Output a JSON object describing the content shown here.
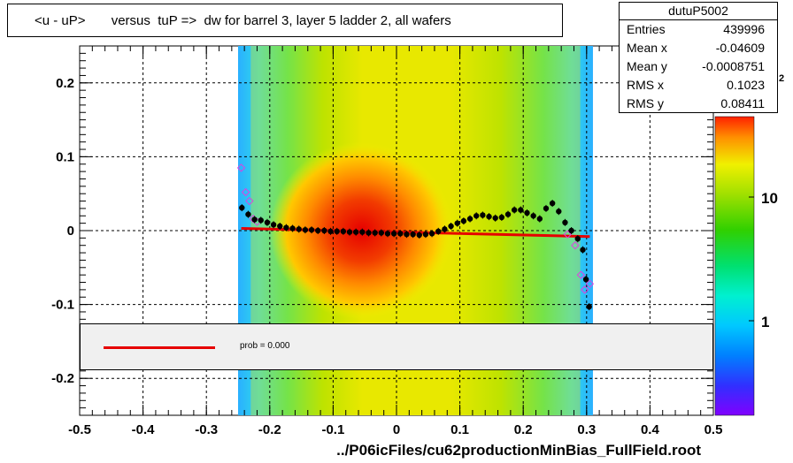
{
  "title": "<u - uP>       versus  tuP =>  dw for barrel 3, layer 5 ladder 2, all wafers",
  "stats": {
    "name": "dutuP5002",
    "rows": [
      {
        "key": "Entries",
        "value": "439996"
      },
      {
        "key": "Mean x",
        "value": "-0.04609"
      },
      {
        "key": "Mean y",
        "value": "-0.0008751"
      },
      {
        "key": "RMS x",
        "value": "0.1023"
      },
      {
        "key": "RMS y",
        "value": "0.08411"
      }
    ]
  },
  "legend": {
    "text": "prob = 0.000"
  },
  "footer": "../P06icFiles/cu62productionMinBias_FullField.root",
  "colors": {
    "fit_line": "#e60000",
    "profile_marker": "#000000",
    "open_marker": "#e040e0"
  },
  "chart_data": {
    "type": "heatmap",
    "xlim": [
      -0.5,
      0.5
    ],
    "ylim": [
      -0.25,
      0.25
    ],
    "x_ticks": [
      "-0.5",
      "-0.4",
      "-0.3",
      "-0.2",
      "-0.1",
      "0",
      "0.1",
      "0.2",
      "0.3",
      "0.4",
      "0.5"
    ],
    "y_ticks": [
      "-0.2",
      "-0.1",
      "0",
      "0.1",
      "0.2"
    ],
    "grid": true,
    "color_scale": {
      "scale": "log",
      "labels": [
        "1",
        "10"
      ],
      "top_label_partial": "2"
    },
    "profile_points": [
      {
        "x": -0.244,
        "y": 0.031
      },
      {
        "x": -0.234,
        "y": 0.022
      },
      {
        "x": -0.224,
        "y": 0.015
      },
      {
        "x": -0.214,
        "y": 0.014
      },
      {
        "x": -0.204,
        "y": 0.011
      },
      {
        "x": -0.194,
        "y": 0.008
      },
      {
        "x": -0.184,
        "y": 0.006
      },
      {
        "x": -0.174,
        "y": 0.004
      },
      {
        "x": -0.164,
        "y": 0.003
      },
      {
        "x": -0.154,
        "y": 0.002
      },
      {
        "x": -0.144,
        "y": 0.001
      },
      {
        "x": -0.134,
        "y": 0.001
      },
      {
        "x": -0.124,
        "y": 0.0
      },
      {
        "x": -0.114,
        "y": 0.0
      },
      {
        "x": -0.104,
        "y": -0.001
      },
      {
        "x": -0.094,
        "y": -0.001
      },
      {
        "x": -0.084,
        "y": -0.001
      },
      {
        "x": -0.074,
        "y": -0.002
      },
      {
        "x": -0.064,
        "y": -0.002
      },
      {
        "x": -0.054,
        "y": -0.002
      },
      {
        "x": -0.044,
        "y": -0.003
      },
      {
        "x": -0.034,
        "y": -0.003
      },
      {
        "x": -0.024,
        "y": -0.003
      },
      {
        "x": -0.014,
        "y": -0.004
      },
      {
        "x": -0.004,
        "y": -0.004
      },
      {
        "x": 0.006,
        "y": -0.004
      },
      {
        "x": 0.016,
        "y": -0.005
      },
      {
        "x": 0.026,
        "y": -0.005
      },
      {
        "x": 0.036,
        "y": -0.006
      },
      {
        "x": 0.046,
        "y": -0.005
      },
      {
        "x": 0.056,
        "y": -0.004
      },
      {
        "x": 0.066,
        "y": -0.001
      },
      {
        "x": 0.076,
        "y": 0.002
      },
      {
        "x": 0.086,
        "y": 0.006
      },
      {
        "x": 0.096,
        "y": 0.01
      },
      {
        "x": 0.106,
        "y": 0.013
      },
      {
        "x": 0.116,
        "y": 0.016
      },
      {
        "x": 0.126,
        "y": 0.02
      },
      {
        "x": 0.136,
        "y": 0.021
      },
      {
        "x": 0.146,
        "y": 0.019
      },
      {
        "x": 0.156,
        "y": 0.017
      },
      {
        "x": 0.166,
        "y": 0.018
      },
      {
        "x": 0.176,
        "y": 0.022
      },
      {
        "x": 0.186,
        "y": 0.028
      },
      {
        "x": 0.196,
        "y": 0.028
      },
      {
        "x": 0.206,
        "y": 0.024
      },
      {
        "x": 0.216,
        "y": 0.02
      },
      {
        "x": 0.226,
        "y": 0.016
      },
      {
        "x": 0.236,
        "y": 0.03
      },
      {
        "x": 0.246,
        "y": 0.037
      },
      {
        "x": 0.256,
        "y": 0.026
      },
      {
        "x": 0.266,
        "y": 0.011
      },
      {
        "x": 0.276,
        "y": 0.0
      },
      {
        "x": 0.286,
        "y": -0.011
      },
      {
        "x": 0.294,
        "y": -0.026
      },
      {
        "x": 0.299,
        "y": -0.066
      },
      {
        "x": 0.304,
        "y": -0.103
      }
    ],
    "open_points": [
      {
        "x": -0.245,
        "y": 0.085
      },
      {
        "x": -0.238,
        "y": 0.052
      },
      {
        "x": -0.232,
        "y": 0.04
      },
      {
        "x": -0.226,
        "y": 0.016
      },
      {
        "x": -0.22,
        "y": 0.012
      },
      {
        "x": 0.27,
        "y": -0.005
      },
      {
        "x": 0.282,
        "y": -0.02
      },
      {
        "x": 0.291,
        "y": -0.06
      },
      {
        "x": 0.297,
        "y": -0.08
      },
      {
        "x": 0.305,
        "y": -0.072
      }
    ],
    "fit_line": {
      "x": [
        -0.245,
        0.305
      ],
      "y": [
        0.003,
        -0.008
      ]
    }
  }
}
